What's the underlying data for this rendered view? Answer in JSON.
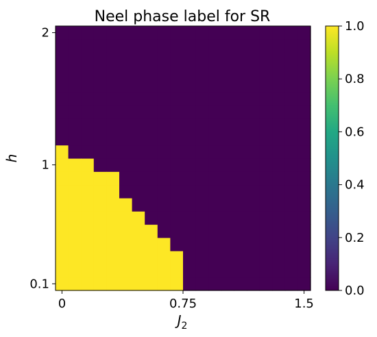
{
  "chart_data": {
    "type": "heatmap",
    "title": "Neel phase label for SR",
    "xlabel": "J",
    "xlabel_sub": "2",
    "ylabel": "h",
    "x_ticks": [
      {
        "value": 0,
        "label": "0"
      },
      {
        "value": 0.75,
        "label": "0.75"
      },
      {
        "value": 1.5,
        "label": "1.5"
      }
    ],
    "y_ticks": [
      {
        "value": 0.1,
        "label": "0.1"
      },
      {
        "value": 1,
        "label": "1"
      },
      {
        "value": 2,
        "label": "2"
      }
    ],
    "xlim": [
      -0.04,
      1.54
    ],
    "x_grid": {
      "start": -0.04,
      "step": 0.079,
      "count": 20
    },
    "y_grid": {
      "count": 20,
      "note": "rows indexed from bottom (0) to top (19)"
    },
    "colorbar": {
      "colormap": "viridis",
      "min": 0,
      "max": 1,
      "ticks": [
        "0.0",
        "0.2",
        "0.4",
        "0.6",
        "0.8",
        "1.0"
      ]
    },
    "colors": {
      "low": "#440154",
      "high": "#fde725"
    },
    "phase_boundary": [
      {
        "col": 0,
        "rows_with_value_1": 11
      },
      {
        "col": 1,
        "rows_with_value_1": 10
      },
      {
        "col": 2,
        "rows_with_value_1": 10
      },
      {
        "col": 3,
        "rows_with_value_1": 9
      },
      {
        "col": 4,
        "rows_with_value_1": 9
      },
      {
        "col": 5,
        "rows_with_value_1": 7
      },
      {
        "col": 6,
        "rows_with_value_1": 6
      },
      {
        "col": 7,
        "rows_with_value_1": 5
      },
      {
        "col": 8,
        "rows_with_value_1": 4
      },
      {
        "col": 9,
        "rows_with_value_1": 3
      },
      {
        "col": 10,
        "rows_with_value_1": 0
      },
      {
        "col": 11,
        "rows_with_value_1": 0
      },
      {
        "col": 12,
        "rows_with_value_1": 0
      },
      {
        "col": 13,
        "rows_with_value_1": 0
      },
      {
        "col": 14,
        "rows_with_value_1": 0
      },
      {
        "col": 15,
        "rows_with_value_1": 0
      },
      {
        "col": 16,
        "rows_with_value_1": 0
      },
      {
        "col": 17,
        "rows_with_value_1": 0
      },
      {
        "col": 18,
        "rows_with_value_1": 0
      },
      {
        "col": 19,
        "rows_with_value_1": 0
      }
    ]
  }
}
